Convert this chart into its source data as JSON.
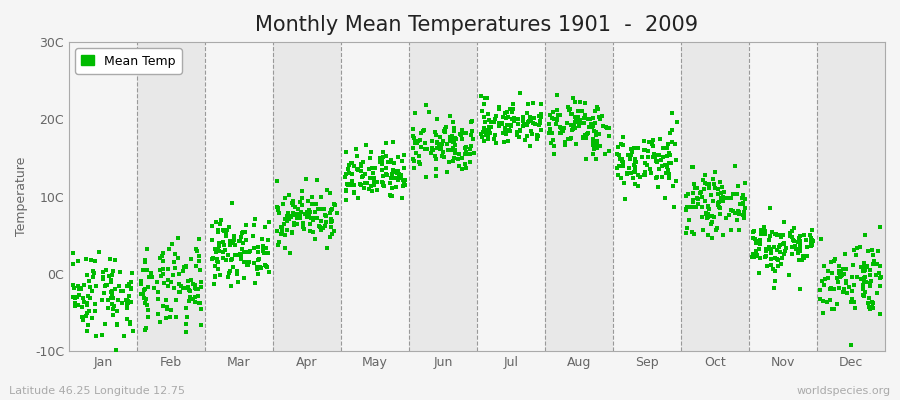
{
  "title": "Monthly Mean Temperatures 1901  -  2009",
  "ylabel": "Temperature",
  "months": [
    "Jan",
    "Feb",
    "Mar",
    "Apr",
    "May",
    "Jun",
    "Jul",
    "Aug",
    "Sep",
    "Oct",
    "Nov",
    "Dec"
  ],
  "month_means": [
    -2.5,
    -2.0,
    3.0,
    7.5,
    12.5,
    16.5,
    19.5,
    19.0,
    14.5,
    9.0,
    3.5,
    -0.5
  ],
  "month_stds": [
    2.8,
    2.8,
    2.0,
    1.8,
    1.8,
    1.8,
    1.5,
    1.8,
    2.0,
    1.8,
    1.8,
    2.5
  ],
  "n_years": 109,
  "ylim": [
    -10,
    30
  ],
  "yticks": [
    -10,
    0,
    10,
    20,
    30
  ],
  "ytick_labels": [
    "-10C",
    "0C",
    "10C",
    "20C",
    "30C"
  ],
  "dot_color": "#00bb00",
  "dot_size": 5,
  "fig_bg_color": "#f5f5f5",
  "plot_bg_color": "#f5f5f5",
  "alt_band_color": "#e8e8e8",
  "legend_label": "Mean Temp",
  "bottom_left_text": "Latitude 46.25 Longitude 12.75",
  "bottom_right_text": "worldspecies.org",
  "grid_line_color": "#999999",
  "title_fontsize": 15,
  "label_fontsize": 9,
  "tick_fontsize": 9,
  "annotation_fontsize": 8,
  "seed": 42
}
